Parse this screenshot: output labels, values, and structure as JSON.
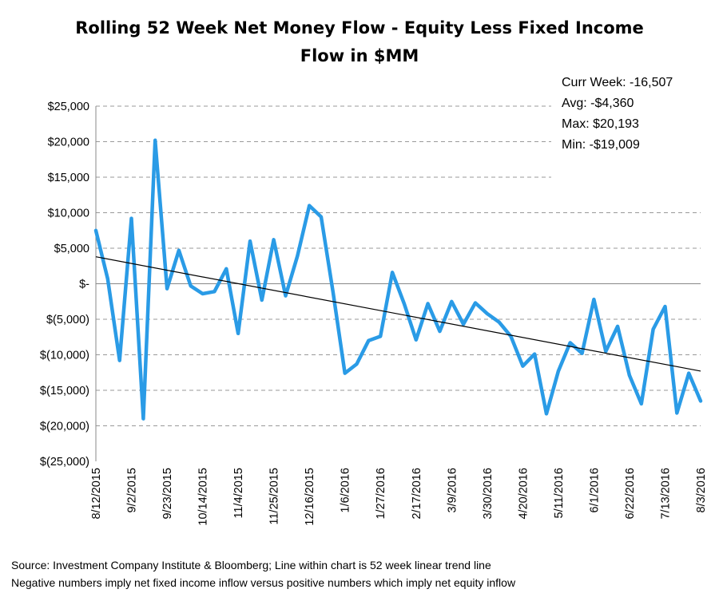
{
  "chart_data": {
    "type": "line",
    "title": "Rolling 52 Week Net Money Flow - Equity Less Fixed Income",
    "subtitle": "Flow in $MM",
    "ylim": [
      -25000,
      25000
    ],
    "y_ticks": [
      25000,
      20000,
      15000,
      10000,
      5000,
      0,
      -5000,
      -10000,
      -15000,
      -20000,
      -25000
    ],
    "y_tick_labels": [
      "$25,000",
      "$20,000",
      "$15,000",
      "$10,000",
      "$5,000",
      "$-",
      "$(5,000)",
      "$(10,000)",
      "$(15,000)",
      "$(20,000)",
      "$(25,000)"
    ],
    "x_tick_labels": [
      "8/12/2015",
      "9/2/2015",
      "9/23/2015",
      "10/14/2015",
      "11/4/2015",
      "11/25/2015",
      "12/16/2015",
      "1/6/2016",
      "1/27/2016",
      "2/17/2016",
      "3/9/2016",
      "3/30/2016",
      "4/20/2016",
      "5/11/2016",
      "6/1/2016",
      "6/22/2016",
      "7/13/2016",
      "8/3/2016"
    ],
    "x_tick_every": 3,
    "grid": true,
    "series": [
      {
        "name": "Rolling 52 Week Net Money Flow",
        "color": "#2a9be6",
        "values": [
          7500,
          700,
          -10800,
          9200,
          -19000,
          20193,
          -700,
          4700,
          -300,
          -1400,
          -1100,
          2100,
          -7000,
          6000,
          -2300,
          6200,
          -1700,
          3900,
          11000,
          9400,
          -1200,
          -12600,
          -11300,
          -8000,
          -7400,
          1600,
          -2800,
          -7900,
          -2800,
          -6700,
          -2500,
          -5700,
          -2700,
          -4200,
          -5400,
          -7400,
          -11600,
          -9900,
          -18300,
          -12300,
          -8300,
          -9800,
          -2200,
          -9500,
          -6000,
          -12900,
          -16900,
          -6400,
          -3200,
          -18200,
          -12600,
          -16507
        ]
      }
    ],
    "trendline": {
      "name": "52 week linear trend line",
      "start": 3800,
      "end": -12300,
      "color": "#000000"
    },
    "stats": {
      "curr_week": "Curr Week:  -16,507",
      "avg": "Avg:  -$4,360",
      "max": "Max:  $20,193",
      "min": "Min:  -$19,009"
    }
  },
  "footer": {
    "source": "Source:  Investment Company Institute & Bloomberg; Line within chart is 52 week linear trend line",
    "note": "Negative numbers imply net fixed income inflow versus positive numbers which imply net equity inflow"
  }
}
